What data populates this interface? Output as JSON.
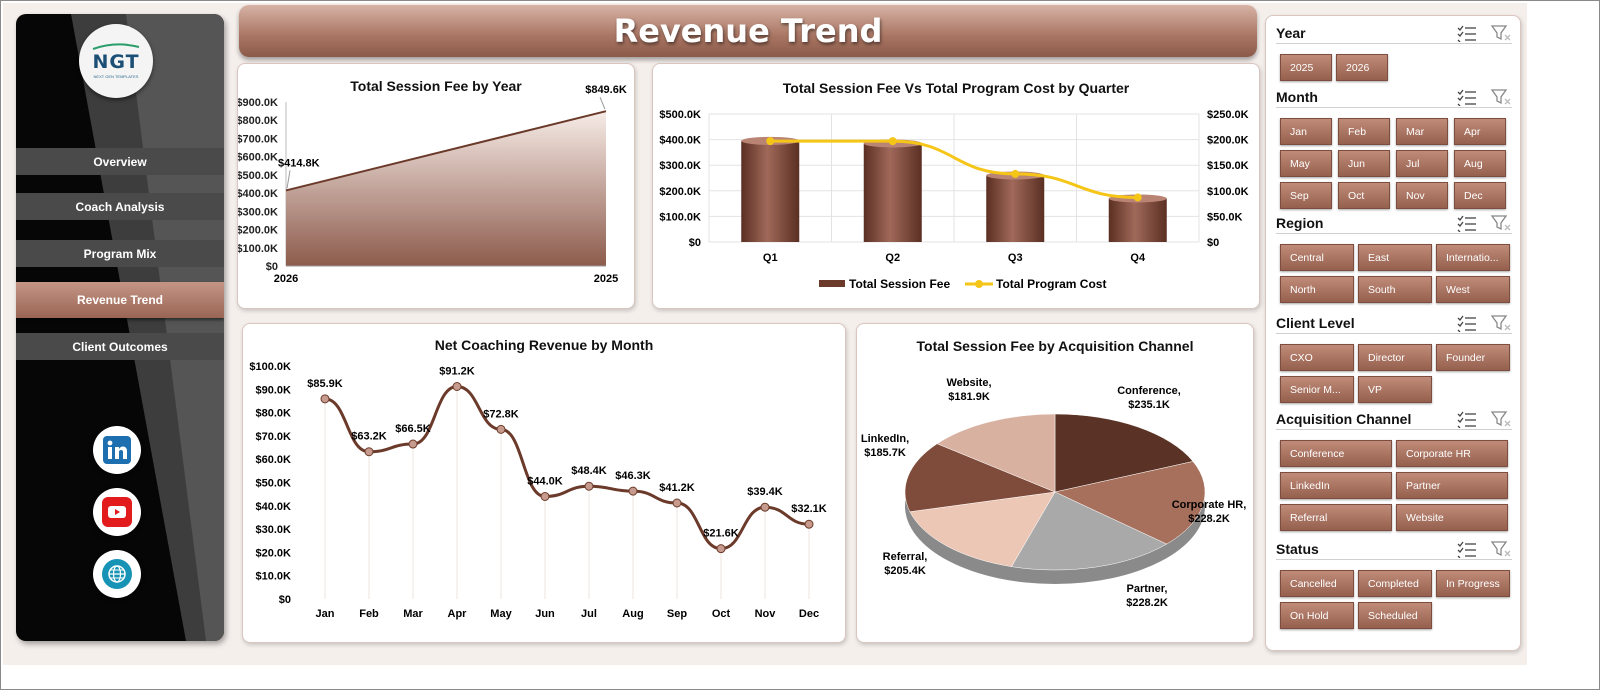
{
  "page": {
    "title": "Revenue Trend"
  },
  "logo": {
    "text": "NGT",
    "subtitle": "NEXT GEN TEMPLATES"
  },
  "sidebar": {
    "items": [
      {
        "label": "Overview"
      },
      {
        "label": "Coach Analysis"
      },
      {
        "label": "Program Mix"
      },
      {
        "label": "Revenue Trend",
        "active": true
      },
      {
        "label": "Client Outcomes"
      }
    ],
    "social": [
      "linkedin-icon",
      "youtube-icon",
      "web-globe-icon"
    ]
  },
  "colors": {
    "accent": "#9a6554",
    "accent_light": "#c49585",
    "line_yellow": "#f5c518",
    "bar": "#7a4535",
    "line_brown": "#6b3a2a"
  },
  "slicers": {
    "year": {
      "title": "Year",
      "options": [
        "2025",
        "2026"
      ]
    },
    "month": {
      "title": "Month",
      "options": [
        "Jan",
        "Feb",
        "Mar",
        "Apr",
        "May",
        "Jun",
        "Jul",
        "Aug",
        "Sep",
        "Oct",
        "Nov",
        "Dec"
      ]
    },
    "region": {
      "title": "Region",
      "options": [
        "Central",
        "East",
        "Internatio...",
        "North",
        "South",
        "West"
      ]
    },
    "client_level": {
      "title": "Client Level",
      "options": [
        "CXO",
        "Director",
        "Founder",
        "Senior M...",
        "VP"
      ]
    },
    "acquisition": {
      "title": "Acquisition Channel",
      "options": [
        "Conference",
        "Corporate HR",
        "LinkedIn",
        "Partner",
        "Referral",
        "Website"
      ]
    },
    "status": {
      "title": "Status",
      "options": [
        "Cancelled",
        "Completed",
        "In Progress",
        "On Hold",
        "Scheduled"
      ]
    }
  },
  "chart_data": [
    {
      "id": "fee-by-year",
      "type": "area",
      "title": "Total Session Fee by Year",
      "categories": [
        "2026",
        "2025"
      ],
      "values": [
        414.8,
        849.6
      ],
      "data_labels": [
        "$414.8K",
        "$849.6K"
      ],
      "ylim": [
        0,
        900
      ],
      "yticks": [
        "$0",
        "$100.0K",
        "$200.0K",
        "$300.0K",
        "$400.0K",
        "$500.0K",
        "$600.0K",
        "$700.0K",
        "$800.0K",
        "$900.0K"
      ]
    },
    {
      "id": "fee-vs-cost-quarter",
      "type": "bar",
      "title": "Total Session Fee Vs Total Program Cost by Quarter",
      "categories": [
        "Q1",
        "Q2",
        "Q3",
        "Q4"
      ],
      "series": [
        {
          "name": "Total Session Fee",
          "type": "bar",
          "axis": "left",
          "values": [
            395,
            385,
            260,
            170
          ]
        },
        {
          "name": "Total Program Cost",
          "type": "line",
          "axis": "right",
          "values": [
            197,
            197,
            133,
            87
          ]
        }
      ],
      "ylim_left": [
        0,
        500
      ],
      "ylim_right": [
        0,
        250
      ],
      "yticks_left": [
        "$0",
        "$100.0K",
        "$200.0K",
        "$300.0K",
        "$400.0K",
        "$500.0K"
      ],
      "yticks_right": [
        "$0",
        "$50.0K",
        "$100.0K",
        "$150.0K",
        "$200.0K",
        "$250.0K"
      ],
      "legend": "bottom"
    },
    {
      "id": "net-revenue-month",
      "type": "line",
      "title": "Net Coaching Revenue by Month",
      "categories": [
        "Jan",
        "Feb",
        "Mar",
        "Apr",
        "May",
        "Jun",
        "Jul",
        "Aug",
        "Sep",
        "Oct",
        "Nov",
        "Dec"
      ],
      "values": [
        85.9,
        63.2,
        66.5,
        91.2,
        72.8,
        44.0,
        48.4,
        46.3,
        41.2,
        21.6,
        39.4,
        32.1
      ],
      "data_labels": [
        "$85.9K",
        "$63.2K",
        "$66.5K",
        "$91.2K",
        "$72.8K",
        "$44.0K",
        "$48.4K",
        "$46.3K",
        "$41.2K",
        "$21.6K",
        "$39.4K",
        "$32.1K"
      ],
      "ylim": [
        0,
        100
      ],
      "yticks": [
        "$0",
        "$10.0K",
        "$20.0K",
        "$30.0K",
        "$40.0K",
        "$50.0K",
        "$60.0K",
        "$70.0K",
        "$80.0K",
        "$90.0K",
        "$100.0K"
      ]
    },
    {
      "id": "fee-by-channel",
      "type": "pie",
      "title": "Total Session Fee by Acquisition Channel",
      "slices": [
        {
          "label": "Conference,",
          "value_label": "$235.1K",
          "value": 235.1,
          "color": "#5a3326"
        },
        {
          "label": "Corporate HR,",
          "value_label": "$228.2K",
          "value": 228.2,
          "color": "#a7705c"
        },
        {
          "label": "Partner,",
          "value_label": "$228.2K",
          "value": 228.2,
          "color": "#a9a9a9"
        },
        {
          "label": "Referral,",
          "value_label": "$205.4K",
          "value": 205.4,
          "color": "#edc7b5"
        },
        {
          "label": "LinkedIn,",
          "value_label": "$185.7K",
          "value": 185.7,
          "color": "#7f4b3a"
        },
        {
          "label": "Website,",
          "value_label": "$181.9K",
          "value": 181.9,
          "color": "#d9b1a1"
        }
      ]
    }
  ]
}
